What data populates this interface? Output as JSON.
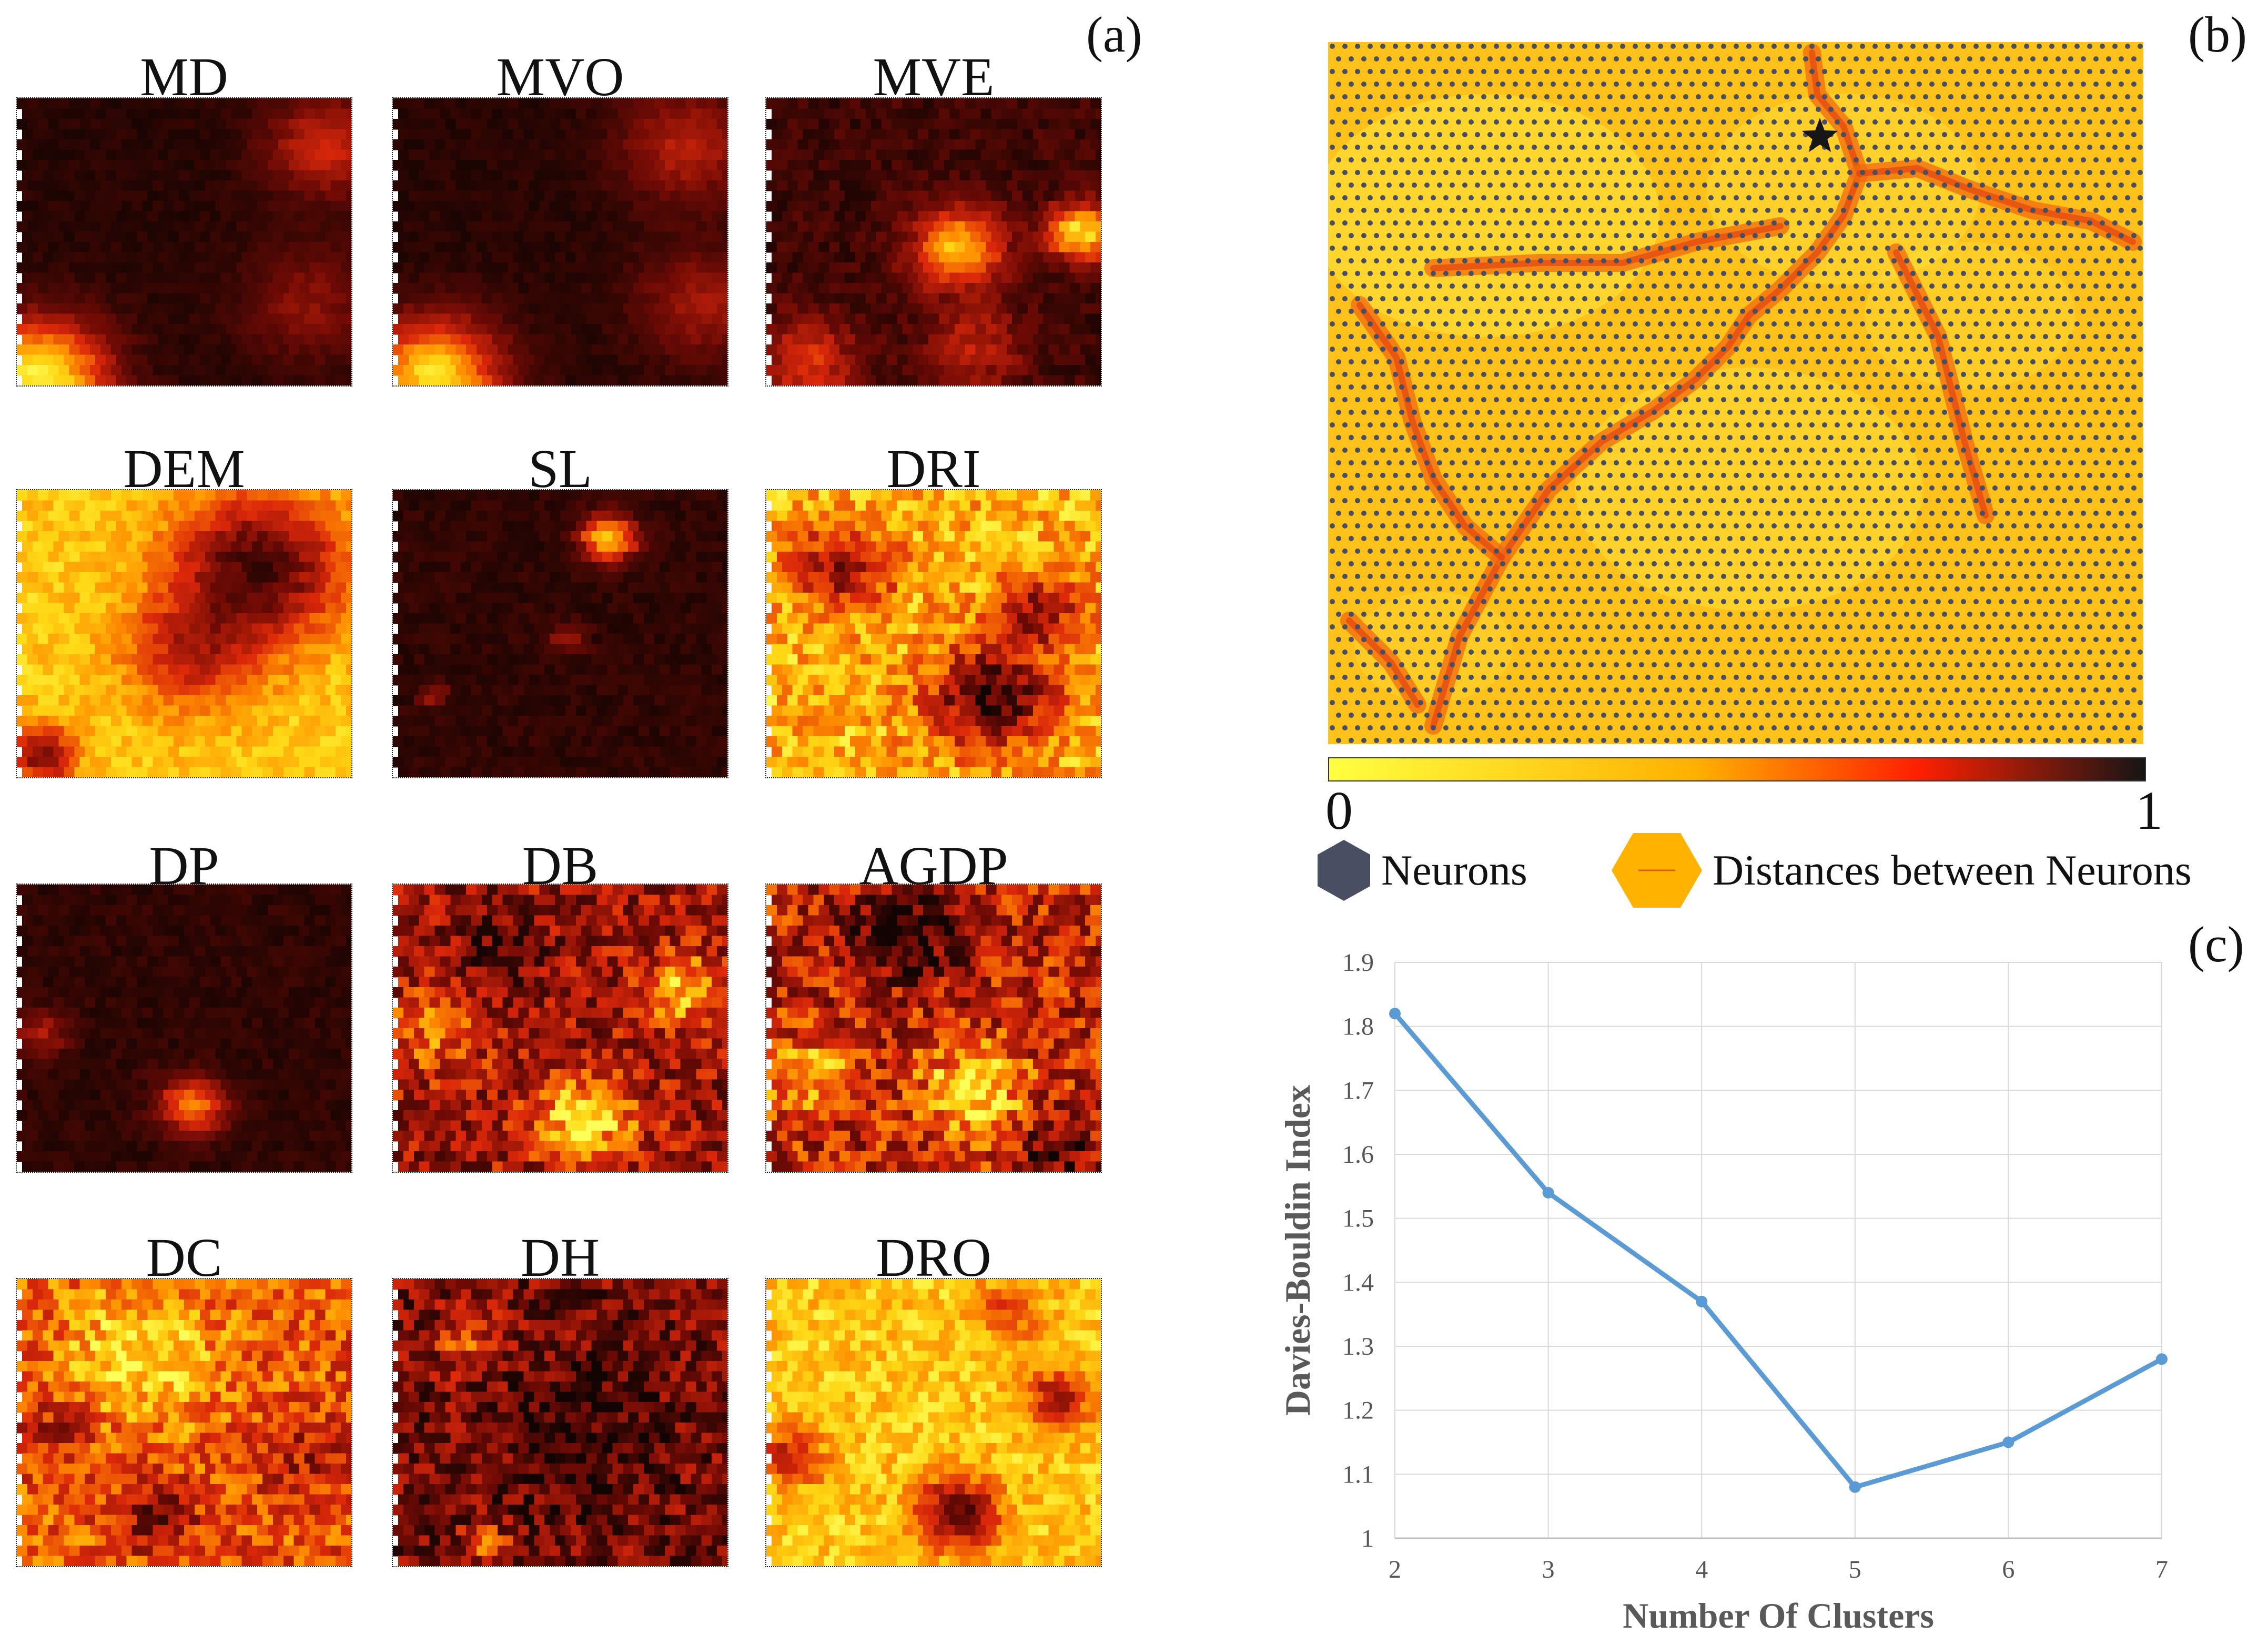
{
  "panel_labels": {
    "a": "(a)",
    "b": "(b)",
    "c": "(c)"
  },
  "component_planes": [
    {
      "id": "MD",
      "label": "MD"
    },
    {
      "id": "MVO",
      "label": "MVO"
    },
    {
      "id": "MVE",
      "label": "MVE"
    },
    {
      "id": "DEM",
      "label": "DEM"
    },
    {
      "id": "SL",
      "label": "SL"
    },
    {
      "id": "DRI",
      "label": "DRI"
    },
    {
      "id": "DP",
      "label": "DP"
    },
    {
      "id": "DB",
      "label": "DB"
    },
    {
      "id": "AGDP",
      "label": "AGDP"
    },
    {
      "id": "DC",
      "label": "DC"
    },
    {
      "id": "DH",
      "label": "DH"
    },
    {
      "id": "DRO",
      "label": "DRO"
    }
  ],
  "umatrix": {
    "colorbar_min": "0",
    "colorbar_max": "1",
    "legend": {
      "neurons": "Neurons",
      "distances": "Distances between Neurons"
    },
    "colors": {
      "low": "#ffff40",
      "mid": "#ffa500",
      "high": "#ff2000",
      "max": "#1a1a1a",
      "neuron": "#4a4e62"
    }
  },
  "chart_data": {
    "type": "line",
    "title": "",
    "xlabel": "Number Of Clusters",
    "ylabel": "Davies-Bouldin Index",
    "x": [
      2,
      3,
      4,
      5,
      6,
      7
    ],
    "y": [
      1.82,
      1.54,
      1.37,
      1.08,
      1.15,
      1.28
    ],
    "xlim": [
      2,
      7
    ],
    "ylim": [
      1,
      1.9
    ],
    "yticks": [
      "1",
      "1.1",
      "1.2",
      "1.3",
      "1.4",
      "1.5",
      "1.6",
      "1.7",
      "1.8",
      "1.9"
    ],
    "xticks": [
      "2",
      "3",
      "4",
      "5",
      "6",
      "7"
    ],
    "grid": true,
    "line_color": "#5b9bd5"
  }
}
